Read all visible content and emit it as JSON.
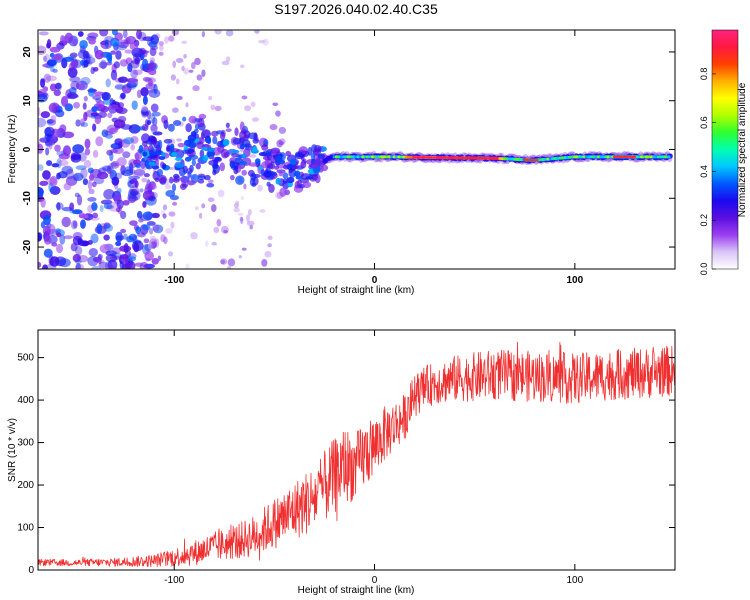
{
  "title": "S197.2026.040.02.40.C35",
  "chart_data": [
    {
      "type": "heatmap",
      "xlabel": "Height of straight line (km)",
      "ylabel": "Frequency (Hz)",
      "xlim": [
        -168,
        150
      ],
      "ylim": [
        -24.5,
        24.5
      ],
      "xticks": [
        -100,
        0,
        100
      ],
      "xtick_labels": [
        "-100",
        "0",
        "100"
      ],
      "yticks": [
        20,
        10,
        0,
        -10,
        -20
      ],
      "ytick_labels": [
        "20",
        "10",
        "0",
        "-10",
        "-20"
      ],
      "colorbar": {
        "label": "Normalized spectral amplitude",
        "range": [
          0,
          0.98
        ],
        "ticks": [
          0.8,
          0.6,
          0.4,
          0.2,
          0.0
        ],
        "tick_labels": [
          "0.8",
          "0.6",
          "0.4",
          "0.2",
          "0.0"
        ],
        "colors": [
          "#ffffff",
          "#d9c5f7",
          "#9b3ff0",
          "#5a10e0",
          "#1a0af0",
          "#0058ff",
          "#00c8ff",
          "#00ffb0",
          "#30ff30",
          "#b0ff00",
          "#ffff00",
          "#ffb000",
          "#ff4000",
          "#ff1a40",
          "#ff2080"
        ]
      },
      "ridge": {
        "description_points_x": [
          -115,
          -100,
          -90,
          -80,
          -70,
          -60,
          -50,
          -40,
          -30,
          -20,
          -10,
          0,
          10,
          20,
          40,
          60,
          80,
          100,
          120,
          148
        ],
        "description_points_freq": [
          -1.5,
          -2,
          1,
          -1,
          -0.5,
          -2,
          -4,
          -5,
          -3,
          -1.5,
          -1.5,
          -1.5,
          -1.5,
          -1.6,
          -1.7,
          -1.8,
          -2.2,
          -1.5,
          -1.5,
          -1.5
        ]
      }
    },
    {
      "type": "line",
      "xlabel": "Height of straight line (km)",
      "ylabel": "SNR (10 * v/v)",
      "xlim": [
        -168,
        150
      ],
      "ylim": [
        0,
        565
      ],
      "xticks": [
        -100,
        0,
        100
      ],
      "xtick_labels": [
        "-100",
        "0",
        "100"
      ],
      "yticks": [
        0,
        100,
        200,
        300,
        400,
        500
      ],
      "ytick_labels": [
        "0",
        "100",
        "200",
        "300",
        "400",
        "500"
      ],
      "color": "#f03030",
      "series": [
        {
          "name": "SNR",
          "x": [
            -168,
            -150,
            -130,
            -110,
            -100,
            -90,
            -80,
            -70,
            -60,
            -50,
            -40,
            -30,
            -20,
            -15,
            -10,
            -5,
            0,
            5,
            10,
            15,
            20,
            25,
            30,
            40,
            60,
            80,
            100,
            120,
            140,
            150
          ],
          "y": [
            18,
            17,
            18,
            22,
            30,
            40,
            55,
            65,
            80,
            110,
            140,
            170,
            220,
            250,
            240,
            270,
            290,
            320,
            340,
            360,
            410,
            430,
            440,
            450,
            460,
            455,
            450,
            460,
            465,
            470
          ],
          "noise_amplitude": [
            8,
            8,
            10,
            15,
            22,
            30,
            35,
            40,
            50,
            60,
            70,
            80,
            90,
            90,
            80,
            80,
            70,
            65,
            60,
            55,
            50,
            50,
            50,
            55,
            60,
            60,
            60,
            60,
            60,
            60
          ]
        }
      ]
    }
  ]
}
